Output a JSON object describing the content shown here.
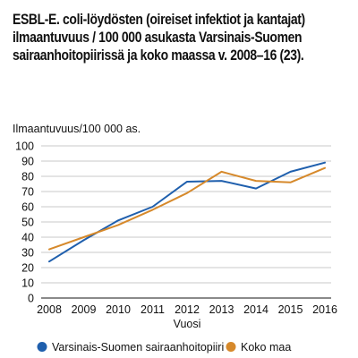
{
  "chart_data": {
    "type": "line",
    "title": "ESBL-E. coli-löydösten (oireiset infektiot ja kantajat) ilmaantuvuus / 100 000 asukasta Varsinais-Suomen sairaanhoitopiirissä ja koko maassa v. 2008–16 (23).",
    "xlabel": "Vuosi",
    "ylabel": "Ilmaantuvuus/100 000 as.",
    "x": [
      "2008",
      "2009",
      "2010",
      "2011",
      "2012",
      "2013",
      "2014",
      "2015",
      "2016"
    ],
    "ylim": [
      0,
      100
    ],
    "yticks": [
      "0",
      "10",
      "20",
      "30",
      "40",
      "50",
      "60",
      "70",
      "80",
      "90",
      "100"
    ],
    "grid": "horizontal",
    "legend_position": "bottom",
    "series": [
      {
        "name": "Varsinais-Suomen sairaanhoitopiiri",
        "color": "#1f5fad",
        "values": [
          24,
          38,
          51,
          60,
          76.5,
          77,
          72,
          83,
          89
        ]
      },
      {
        "name": "Koko maa",
        "color": "#d6892b",
        "values": [
          32,
          40,
          48,
          58,
          69,
          83,
          77,
          76,
          85.5
        ]
      }
    ]
  }
}
